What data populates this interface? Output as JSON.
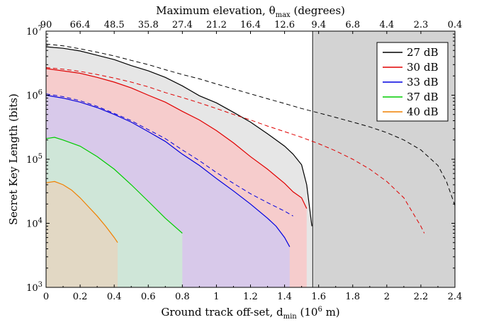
{
  "chart_data": {
    "type": "line",
    "xlabel": "Ground track off-set, d_min (10^6 m)",
    "x2label": "Maximum elevation, θ_max (degrees)",
    "ylabel": "Secret Key Length (bits)",
    "xlim": [
      0,
      2.4
    ],
    "ylim": [
      1000,
      10000000
    ],
    "yscale": "log",
    "grid": false,
    "legend_position": "top-right",
    "x_ticks": [
      "0",
      "0.2",
      "0.4",
      "0.6",
      "0.8",
      "1",
      "1.2",
      "1.4",
      "1.6",
      "1.8",
      "2",
      "2.2",
      "2.4"
    ],
    "x2_ticks": [
      "90",
      "66.4",
      "48.5",
      "35.8",
      "27.4",
      "21.2",
      "16.4",
      "12.6",
      "9.4",
      "6.8",
      "4.4",
      "2.3",
      "0.4"
    ],
    "y_ticks": [
      "10^3",
      "10^4",
      "10^5",
      "10^6",
      "10^7"
    ],
    "shaded_region": {
      "x_from": 1.57,
      "x_to": 2.4,
      "color": "#d3d3d3"
    },
    "vertical_line_x": 1.565,
    "series": [
      {
        "name": "27 dB",
        "color": "#000000",
        "fill": "#e6e6e6",
        "x": [
          0,
          0.1,
          0.2,
          0.3,
          0.4,
          0.5,
          0.6,
          0.7,
          0.8,
          0.9,
          1.0,
          1.1,
          1.2,
          1.3,
          1.4,
          1.45,
          1.5,
          1.53,
          1.56
        ],
        "y": [
          5700000,
          5400000,
          4900000,
          4200000,
          3600000,
          2900000,
          2400000,
          1900000,
          1400000,
          980000,
          760000,
          540000,
          380000,
          250000,
          160000,
          120000,
          82000,
          40000,
          9000
        ]
      },
      {
        "name": "30 dB",
        "color": "#e00000",
        "fill": "#f6cccc",
        "x": [
          0,
          0.1,
          0.2,
          0.3,
          0.4,
          0.5,
          0.6,
          0.7,
          0.8,
          0.9,
          1.0,
          1.1,
          1.2,
          1.3,
          1.4,
          1.45,
          1.5,
          1.53
        ],
        "y": [
          2600000,
          2400000,
          2200000,
          1900000,
          1600000,
          1300000,
          1000000,
          780000,
          560000,
          410000,
          280000,
          180000,
          110000,
          70000,
          42000,
          31000,
          25000,
          17000
        ]
      },
      {
        "name": "33 dB",
        "color": "#0000e0",
        "fill": "#d8c9ea",
        "x": [
          0,
          0.1,
          0.2,
          0.3,
          0.4,
          0.5,
          0.6,
          0.7,
          0.8,
          0.9,
          1.0,
          1.1,
          1.2,
          1.3,
          1.35,
          1.4,
          1.43
        ],
        "y": [
          1000000,
          900000,
          780000,
          640000,
          500000,
          380000,
          270000,
          190000,
          120000,
          80000,
          50000,
          32000,
          20000,
          12000,
          9000,
          6000,
          4300
        ]
      },
      {
        "name": "37 dB",
        "color": "#00cc00",
        "fill": "#cfe6d8",
        "x": [
          0,
          0.05,
          0.1,
          0.2,
          0.3,
          0.4,
          0.5,
          0.6,
          0.7,
          0.8
        ],
        "y": [
          210000,
          220000,
          200000,
          160000,
          110000,
          70000,
          40000,
          22000,
          12000,
          7000
        ]
      },
      {
        "name": "40 dB",
        "color": "#f08000",
        "fill": "#e2d8c4",
        "x": [
          0,
          0.05,
          0.1,
          0.15,
          0.2,
          0.25,
          0.3,
          0.35,
          0.4,
          0.42
        ],
        "y": [
          43000,
          45000,
          40000,
          33000,
          25000,
          18000,
          13000,
          9000,
          6000,
          5000
        ]
      }
    ],
    "dashed_curves": [
      {
        "color": "#000000",
        "x": [
          0,
          0.1,
          0.2,
          0.3,
          0.4,
          0.5,
          0.6,
          0.7,
          0.8,
          0.9,
          1.0,
          1.1,
          1.2,
          1.3,
          1.4,
          1.5,
          1.6,
          1.7,
          1.8,
          1.9,
          2.0,
          2.1,
          2.2,
          2.3,
          2.35,
          2.4
        ],
        "y": [
          6300000,
          5900000,
          5300000,
          4700000,
          4100000,
          3500000,
          3000000,
          2500000,
          2100000,
          1800000,
          1500000,
          1250000,
          1050000,
          880000,
          740000,
          620000,
          530000,
          450000,
          380000,
          320000,
          260000,
          200000,
          140000,
          80000,
          45000,
          19000
        ]
      },
      {
        "color": "#e00000",
        "x": [
          0,
          0.1,
          0.2,
          0.3,
          0.4,
          0.5,
          0.6,
          0.7,
          0.8,
          0.9,
          1.0,
          1.1,
          1.2,
          1.3,
          1.4,
          1.5,
          1.6,
          1.7,
          1.8,
          1.9,
          2.0,
          2.1,
          2.15,
          2.2,
          2.22
        ],
        "y": [
          2700000,
          2550000,
          2350000,
          2100000,
          1850000,
          1600000,
          1350000,
          1100000,
          920000,
          760000,
          620000,
          500000,
          410000,
          330000,
          270000,
          220000,
          175000,
          135000,
          100000,
          70000,
          45000,
          25000,
          15000,
          9000,
          7000
        ]
      },
      {
        "color": "#0000e0",
        "x": [
          0,
          0.1,
          0.2,
          0.3,
          0.4,
          0.5,
          0.6,
          0.7,
          0.8,
          0.9,
          1.0,
          1.1,
          1.2,
          1.3,
          1.4,
          1.45
        ],
        "y": [
          1050000,
          950000,
          820000,
          670000,
          520000,
          400000,
          290000,
          210000,
          140000,
          95000,
          62000,
          42000,
          29000,
          21000,
          15500,
          13000
        ]
      }
    ]
  }
}
